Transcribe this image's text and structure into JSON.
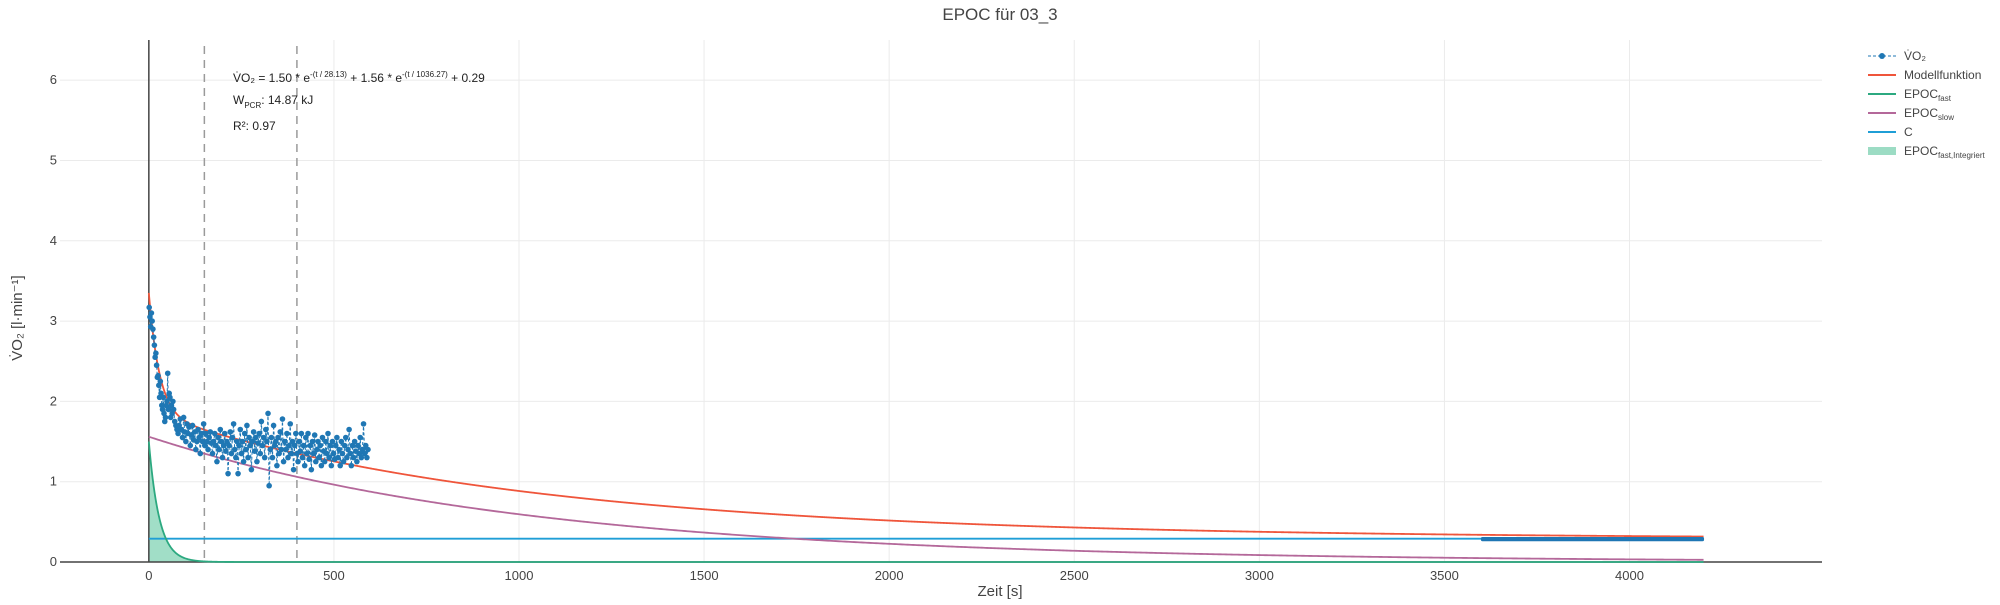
{
  "chart_data": {
    "type": "scatter",
    "title": "EPOC für 03_3",
    "xlabel": "Zeit [s]",
    "ylabel": "V̇O₂ [l·min⁻¹]",
    "xlim": [
      -240,
      4520
    ],
    "ylim": [
      0,
      6.5
    ],
    "x_ticks": [
      0,
      500,
      1000,
      1500,
      2000,
      2500,
      3000,
      3500,
      4000
    ],
    "y_ticks": [
      0,
      1,
      2,
      3,
      4,
      5,
      6
    ],
    "grid": true,
    "legend_position": "top-right",
    "model": {
      "a": 1.5,
      "tau1": 28.13,
      "b": 1.56,
      "tau2": 1036.27,
      "c": 0.29,
      "x_max": 4200
    },
    "vlines": [
      150,
      400
    ],
    "series": [
      {
        "name": "V̇O₂",
        "kind": "markers+lines",
        "color": "#1f77b4",
        "points": [
          [
            1,
            3.17
          ],
          [
            3,
            3.05
          ],
          [
            5,
            2.93
          ],
          [
            7,
            3.1
          ],
          [
            9,
            3.0
          ],
          [
            11,
            2.9
          ],
          [
            13,
            2.8
          ],
          [
            15,
            2.7
          ],
          [
            17,
            2.55
          ],
          [
            19,
            2.6
          ],
          [
            21,
            2.45
          ],
          [
            23,
            2.3
          ],
          [
            25,
            2.32
          ],
          [
            27,
            2.2
          ],
          [
            29,
            2.05
          ],
          [
            31,
            2.25
          ],
          [
            33,
            2.1
          ],
          [
            35,
            1.95
          ],
          [
            37,
            1.9
          ],
          [
            39,
            2.05
          ],
          [
            41,
            1.85
          ],
          [
            43,
            1.75
          ],
          [
            45,
            1.8
          ],
          [
            47,
            1.95
          ],
          [
            49,
            2.0
          ],
          [
            51,
            2.35
          ],
          [
            53,
            1.9
          ],
          [
            55,
            2.1
          ],
          [
            57,
            2.05
          ],
          [
            59,
            1.8
          ],
          [
            61,
            1.95
          ],
          [
            63,
            1.85
          ],
          [
            65,
            2.0
          ],
          [
            67,
            1.9
          ],
          [
            70,
            1.75
          ],
          [
            73,
            1.7
          ],
          [
            76,
            1.65
          ],
          [
            79,
            1.6
          ],
          [
            82,
            1.7
          ],
          [
            85,
            1.78
          ],
          [
            88,
            1.65
          ],
          [
            91,
            1.55
          ],
          [
            94,
            1.8
          ],
          [
            97,
            1.62
          ],
          [
            100,
            1.5
          ],
          [
            103,
            1.72
          ],
          [
            106,
            1.6
          ],
          [
            109,
            1.68
          ],
          [
            112,
            1.45
          ],
          [
            115,
            1.58
          ],
          [
            118,
            1.7
          ],
          [
            121,
            1.52
          ],
          [
            124,
            1.62
          ],
          [
            127,
            1.4
          ],
          [
            130,
            1.5
          ],
          [
            133,
            1.65
          ],
          [
            136,
            1.55
          ],
          [
            139,
            1.35
          ],
          [
            142,
            1.6
          ],
          [
            145,
            1.5
          ],
          [
            148,
            1.72
          ],
          [
            151,
            1.45
          ],
          [
            154,
            1.6
          ],
          [
            157,
            1.5
          ],
          [
            160,
            1.4
          ],
          [
            163,
            1.55
          ],
          [
            166,
            1.62
          ],
          [
            169,
            1.48
          ],
          [
            172,
            1.35
          ],
          [
            175,
            1.5
          ],
          [
            178,
            1.6
          ],
          [
            181,
            1.45
          ],
          [
            184,
            1.25
          ],
          [
            187,
            1.55
          ],
          [
            190,
            1.4
          ],
          [
            193,
            1.65
          ],
          [
            196,
            1.5
          ],
          [
            199,
            1.3
          ],
          [
            202,
            1.45
          ],
          [
            205,
            1.6
          ],
          [
            208,
            1.38
          ],
          [
            211,
            1.5
          ],
          [
            214,
            1.1
          ],
          [
            217,
            1.45
          ],
          [
            220,
            1.62
          ],
          [
            223,
            1.35
          ],
          [
            226,
            1.55
          ],
          [
            229,
            1.72
          ],
          [
            232,
            1.4
          ],
          [
            235,
            1.3
          ],
          [
            238,
            1.5
          ],
          [
            241,
            1.1
          ],
          [
            244,
            1.45
          ],
          [
            247,
            1.65
          ],
          [
            250,
            1.35
          ],
          [
            253,
            1.5
          ],
          [
            256,
            1.25
          ],
          [
            259,
            1.6
          ],
          [
            262,
            1.4
          ],
          [
            265,
            1.7
          ],
          [
            268,
            1.3
          ],
          [
            271,
            1.55
          ],
          [
            274,
            1.45
          ],
          [
            277,
            1.15
          ],
          [
            280,
            1.5
          ],
          [
            283,
            1.62
          ],
          [
            286,
            1.38
          ],
          [
            289,
            1.55
          ],
          [
            292,
            1.25
          ],
          [
            295,
            1.48
          ],
          [
            298,
            1.6
          ],
          [
            301,
            1.35
          ],
          [
            304,
            1.75
          ],
          [
            307,
            1.45
          ],
          [
            310,
            1.55
          ],
          [
            313,
            1.3
          ],
          [
            316,
            1.65
          ],
          [
            319,
            1.5
          ],
          [
            322,
            1.85
          ],
          [
            325,
            0.95
          ],
          [
            328,
            1.4
          ],
          [
            331,
            1.55
          ],
          [
            334,
            1.3
          ],
          [
            337,
            1.7
          ],
          [
            340,
            1.45
          ],
          [
            343,
            1.5
          ],
          [
            346,
            1.2
          ],
          [
            349,
            1.55
          ],
          [
            352,
            1.35
          ],
          [
            355,
            1.62
          ],
          [
            358,
            1.4
          ],
          [
            361,
            1.78
          ],
          [
            364,
            1.25
          ],
          [
            367,
            1.5
          ],
          [
            370,
            1.4
          ],
          [
            373,
            1.6
          ],
          [
            376,
            1.3
          ],
          [
            379,
            1.45
          ],
          [
            382,
            1.72
          ],
          [
            385,
            1.35
          ],
          [
            388,
            1.5
          ],
          [
            391,
            1.15
          ],
          [
            394,
            1.45
          ],
          [
            397,
            1.6
          ],
          [
            400,
            1.35
          ],
          [
            403,
            1.25
          ],
          [
            406,
            1.5
          ],
          [
            409,
            1.38
          ],
          [
            412,
            1.6
          ],
          [
            415,
            1.3
          ],
          [
            418,
            1.45
          ],
          [
            421,
            1.2
          ],
          [
            424,
            1.55
          ],
          [
            427,
            1.35
          ],
          [
            430,
            1.6
          ],
          [
            433,
            1.28
          ],
          [
            436,
            1.45
          ],
          [
            439,
            1.15
          ],
          [
            442,
            1.5
          ],
          [
            445,
            1.35
          ],
          [
            448,
            1.58
          ],
          [
            451,
            1.25
          ],
          [
            454,
            1.4
          ],
          [
            457,
            1.5
          ],
          [
            460,
            1.3
          ],
          [
            463,
            1.45
          ],
          [
            466,
            1.2
          ],
          [
            469,
            1.55
          ],
          [
            472,
            1.38
          ],
          [
            475,
            1.25
          ],
          [
            478,
            1.5
          ],
          [
            481,
            1.35
          ],
          [
            484,
            1.6
          ],
          [
            487,
            1.3
          ],
          [
            490,
            1.45
          ],
          [
            493,
            1.2
          ],
          [
            496,
            1.5
          ],
          [
            499,
            1.35
          ],
          [
            502,
            1.28
          ],
          [
            505,
            1.45
          ],
          [
            508,
            1.55
          ],
          [
            511,
            1.3
          ],
          [
            514,
            1.4
          ],
          [
            517,
            1.2
          ],
          [
            520,
            1.5
          ],
          [
            523,
            1.35
          ],
          [
            526,
            1.25
          ],
          [
            529,
            1.45
          ],
          [
            532,
            1.55
          ],
          [
            535,
            1.3
          ],
          [
            538,
            1.4
          ],
          [
            541,
            1.65
          ],
          [
            544,
            1.35
          ],
          [
            547,
            1.2
          ],
          [
            550,
            1.45
          ],
          [
            553,
            1.3
          ],
          [
            556,
            1.5
          ],
          [
            559,
            1.38
          ],
          [
            562,
            1.25
          ],
          [
            565,
            1.45
          ],
          [
            568,
            1.35
          ],
          [
            571,
            1.55
          ],
          [
            574,
            1.3
          ],
          [
            577,
            1.4
          ],
          [
            580,
            1.72
          ],
          [
            583,
            1.35
          ],
          [
            586,
            1.45
          ],
          [
            589,
            1.3
          ],
          [
            592,
            1.4
          ]
        ]
      },
      {
        "name": "Modellfunktion",
        "kind": "line",
        "color": "#ef553b"
      },
      {
        "name": "EPOC",
        "name_sub": "fast",
        "kind": "line",
        "color": "#2ca980"
      },
      {
        "name": "EPOC",
        "name_sub": "slow",
        "kind": "line",
        "color": "#b4689a"
      },
      {
        "name": "C",
        "kind": "line",
        "color": "#1f9ed6"
      },
      {
        "name": "EPOC",
        "name_sub": "fast,Integriert",
        "kind": "fill",
        "color": "#9cdcc4"
      }
    ],
    "baseline_box": {
      "x": [
        3600,
        4200
      ],
      "y": [
        0.265,
        0.305
      ]
    },
    "annotations": {
      "equation": "V̇O₂ = 1.50 * e",
      "eq_exp1": "-(t / 28.13)",
      "eq_mid": " + 1.56 * e",
      "eq_exp2": "-(t / 1036.27)",
      "eq_end": " + 0.29",
      "work_label": "W",
      "work_sub": "PCR",
      "work_value": ": 14.87 kJ",
      "r2": "R²: 0.97"
    }
  }
}
